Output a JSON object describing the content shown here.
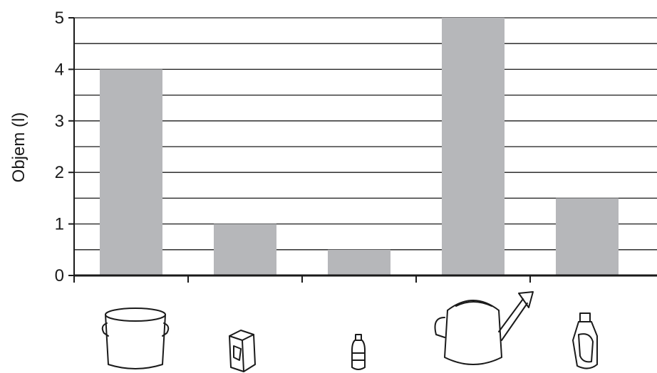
{
  "chart_data": {
    "type": "bar",
    "categories": [
      "pot",
      "milk-carton",
      "small-bottle",
      "watering-can",
      "detergent-bottle"
    ],
    "values": [
      4,
      1,
      0.5,
      5,
      1.5
    ],
    "title": "",
    "xlabel": "",
    "ylabel": "Objem (l)",
    "ylim": [
      0,
      5
    ],
    "yticks": [
      "0",
      "1",
      "2",
      "3",
      "4",
      "5"
    ],
    "grid": true,
    "legend": "none",
    "colors": {
      "bar": "#b6b7ba",
      "grid": "#1a1a1a",
      "axis": "#1a1a1a"
    },
    "category_icons": [
      "pot-icon",
      "milk-carton-icon",
      "bottle-icon",
      "watering-can-icon",
      "detergent-bottle-icon"
    ]
  }
}
